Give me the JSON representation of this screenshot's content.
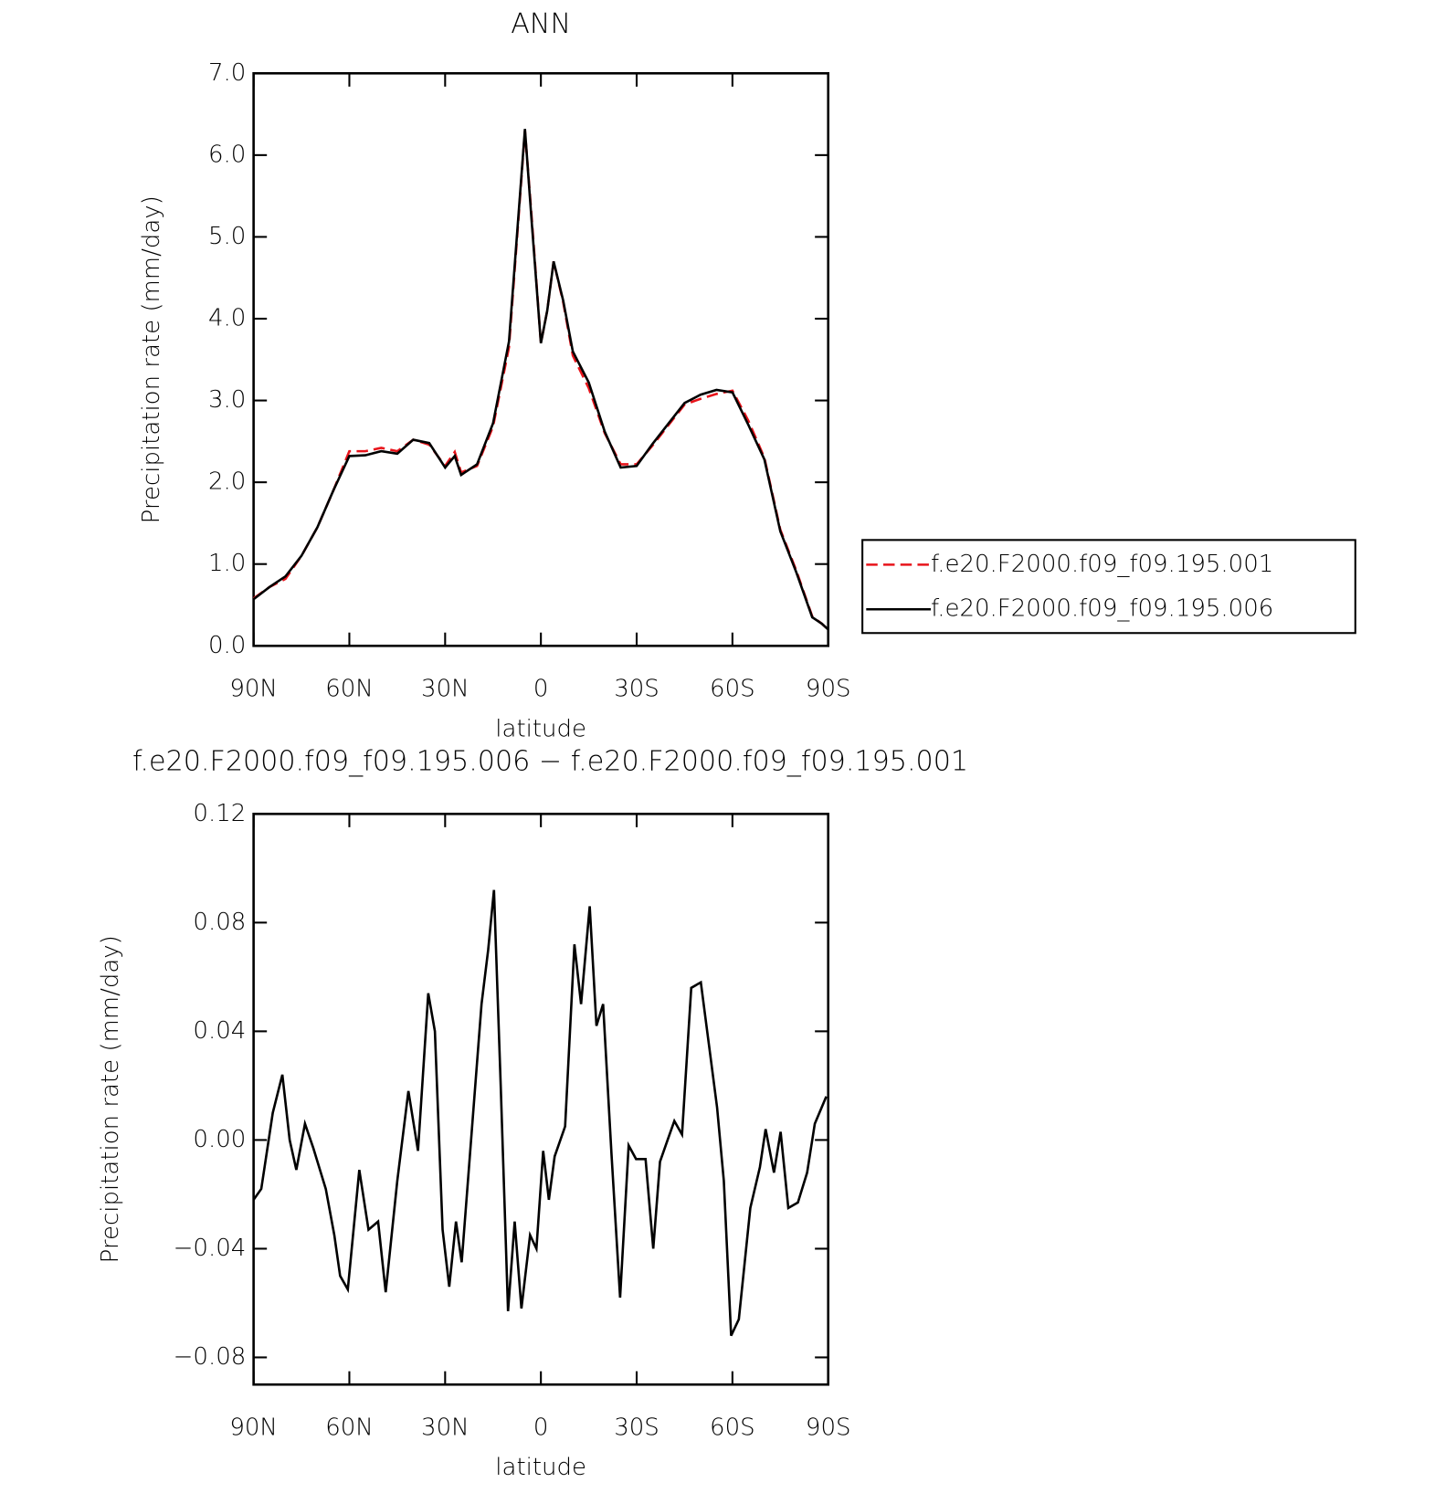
{
  "chart_data": [
    {
      "type": "line",
      "title": "ANN",
      "xlabel": "latitude",
      "ylabel": "Precipitation rate (mm/day)",
      "x": [
        90,
        85,
        80,
        75,
        70,
        65,
        60,
        55,
        50,
        45,
        40,
        35,
        30,
        27,
        25,
        20,
        15,
        10,
        5,
        3,
        0,
        -2,
        -4,
        -7,
        -10,
        -15,
        -20,
        -25,
        -30,
        -35,
        -40,
        -45,
        -50,
        -55,
        -60,
        -65,
        -70,
        -75,
        -80,
        -85,
        -88,
        -90
      ],
      "xlim": [
        90,
        -90
      ],
      "xticks": [
        {
          "value": 90,
          "label": "90N"
        },
        {
          "value": 60,
          "label": "60N"
        },
        {
          "value": 30,
          "label": "30N"
        },
        0,
        {
          "value": -30,
          "label": "30S"
        },
        {
          "value": -60,
          "label": "60S"
        },
        {
          "value": -90,
          "label": "90S"
        }
      ],
      "ylim": [
        0,
        7
      ],
      "yticks": [
        {
          "value": 0,
          "label": "0.0"
        },
        {
          "value": 1,
          "label": "1.0"
        },
        {
          "value": 2,
          "label": "2.0"
        },
        {
          "value": 3,
          "label": "3.0"
        },
        {
          "value": 4,
          "label": "4.0"
        },
        {
          "value": 5,
          "label": "5.0"
        },
        {
          "value": 6,
          "label": "6.0"
        },
        {
          "value": 7,
          "label": "7.0"
        }
      ],
      "legend": "right",
      "series": [
        {
          "name": "f.e20.F2000.f09_f09.195.001",
          "color": "#e8141b",
          "line_style": "dashed",
          "values": [
            0.58,
            0.72,
            0.82,
            1.1,
            1.45,
            1.9,
            2.38,
            2.38,
            2.42,
            2.38,
            2.52,
            2.46,
            2.2,
            2.37,
            2.12,
            2.2,
            2.68,
            3.65,
            6.3,
            5.3,
            3.7,
            4.1,
            4.7,
            4.2,
            3.55,
            3.15,
            2.6,
            2.22,
            2.22,
            2.45,
            2.7,
            2.95,
            3.02,
            3.08,
            3.12,
            2.75,
            2.3,
            1.42,
            0.92,
            0.36,
            0.27,
            0.2
          ]
        },
        {
          "name": "f.e20.F2000.f09_f09.195.006",
          "color": "#000000",
          "line_style": "solid",
          "values": [
            0.57,
            0.72,
            0.85,
            1.1,
            1.45,
            1.9,
            2.32,
            2.33,
            2.38,
            2.35,
            2.52,
            2.48,
            2.18,
            2.32,
            2.09,
            2.22,
            2.72,
            3.72,
            6.32,
            5.25,
            3.7,
            4.1,
            4.7,
            4.22,
            3.6,
            3.22,
            2.62,
            2.18,
            2.2,
            2.47,
            2.72,
            2.97,
            3.07,
            3.13,
            3.1,
            2.7,
            2.28,
            1.4,
            0.9,
            0.35,
            0.27,
            0.2
          ]
        }
      ]
    },
    {
      "type": "line",
      "title": "f.e20.F2000.f09_f09.195.006 − f.e20.F2000.f09_f09.195.001",
      "xlabel": "latitude",
      "ylabel": "Precipitation rate (mm/day)",
      "x": [
        90,
        87.6,
        84.0,
        81.0,
        78.7,
        76.6,
        73.9,
        71.3,
        67.4,
        64.7,
        62.9,
        60.5,
        56.9,
        54.0,
        51.0,
        48.6,
        45.0,
        41.5,
        38.5,
        35.3,
        33.2,
        30.8,
        28.7,
        26.6,
        24.8,
        22.2,
        18.6,
        16.5,
        14.7,
        12.6,
        10.3,
        8.2,
        6.1,
        3.4,
        1.4,
        -0.7,
        -2.5,
        -4.3,
        -7.6,
        -10.5,
        -12.6,
        -15.3,
        -17.4,
        -19.5,
        -22.1,
        -24.8,
        -27.5,
        -29.8,
        -32.8,
        -35.2,
        -37.3,
        -39.7,
        -41.8,
        -44.2,
        -47.1,
        -50.1,
        -55.2,
        -57.3,
        -59.6,
        -62.0,
        -65.6,
        -68.6,
        -70.4,
        -73.0,
        -75.1,
        -77.5,
        -80.5,
        -83.4,
        -85.8,
        -89.4
      ],
      "xlim": [
        90,
        -90
      ],
      "xticks": [
        {
          "value": 90,
          "label": "90N"
        },
        {
          "value": 60,
          "label": "60N"
        },
        {
          "value": 30,
          "label": "30N"
        },
        0,
        {
          "value": -30,
          "label": "30S"
        },
        {
          "value": -60,
          "label": "60S"
        },
        {
          "value": -90,
          "label": "90S"
        }
      ],
      "ylim": [
        -0.09,
        0.12
      ],
      "yticks": [
        {
          "value": -0.08,
          "label": "−0.08"
        },
        {
          "value": -0.04,
          "label": "−0.04"
        },
        {
          "value": 0,
          "label": "0.00"
        },
        0.04,
        0.08,
        0.12
      ],
      "series": [
        {
          "color": "#000000",
          "line_style": "solid",
          "values": [
            -0.022,
            -0.018,
            0.01,
            0.024,
            0.0,
            -0.011,
            0.006,
            -0.003,
            -0.018,
            -0.035,
            -0.05,
            -0.055,
            -0.011,
            -0.033,
            -0.03,
            -0.056,
            -0.015,
            0.018,
            -0.004,
            0.054,
            0.04,
            -0.033,
            -0.054,
            -0.03,
            -0.045,
            -0.005,
            0.05,
            0.07,
            0.092,
            0.02,
            -0.063,
            -0.03,
            -0.062,
            -0.035,
            -0.04,
            -0.004,
            -0.022,
            -0.006,
            0.005,
            0.072,
            0.05,
            0.086,
            0.042,
            0.05,
            -0.005,
            -0.058,
            -0.002,
            -0.007,
            -0.007,
            -0.04,
            -0.008,
            0.0,
            0.007,
            0.002,
            0.056,
            0.058,
            0.012,
            -0.015,
            -0.072,
            -0.066,
            -0.025,
            -0.01,
            0.004,
            -0.012,
            0.003,
            -0.025,
            -0.023,
            -0.012,
            0.006,
            0.016
          ]
        }
      ]
    }
  ]
}
